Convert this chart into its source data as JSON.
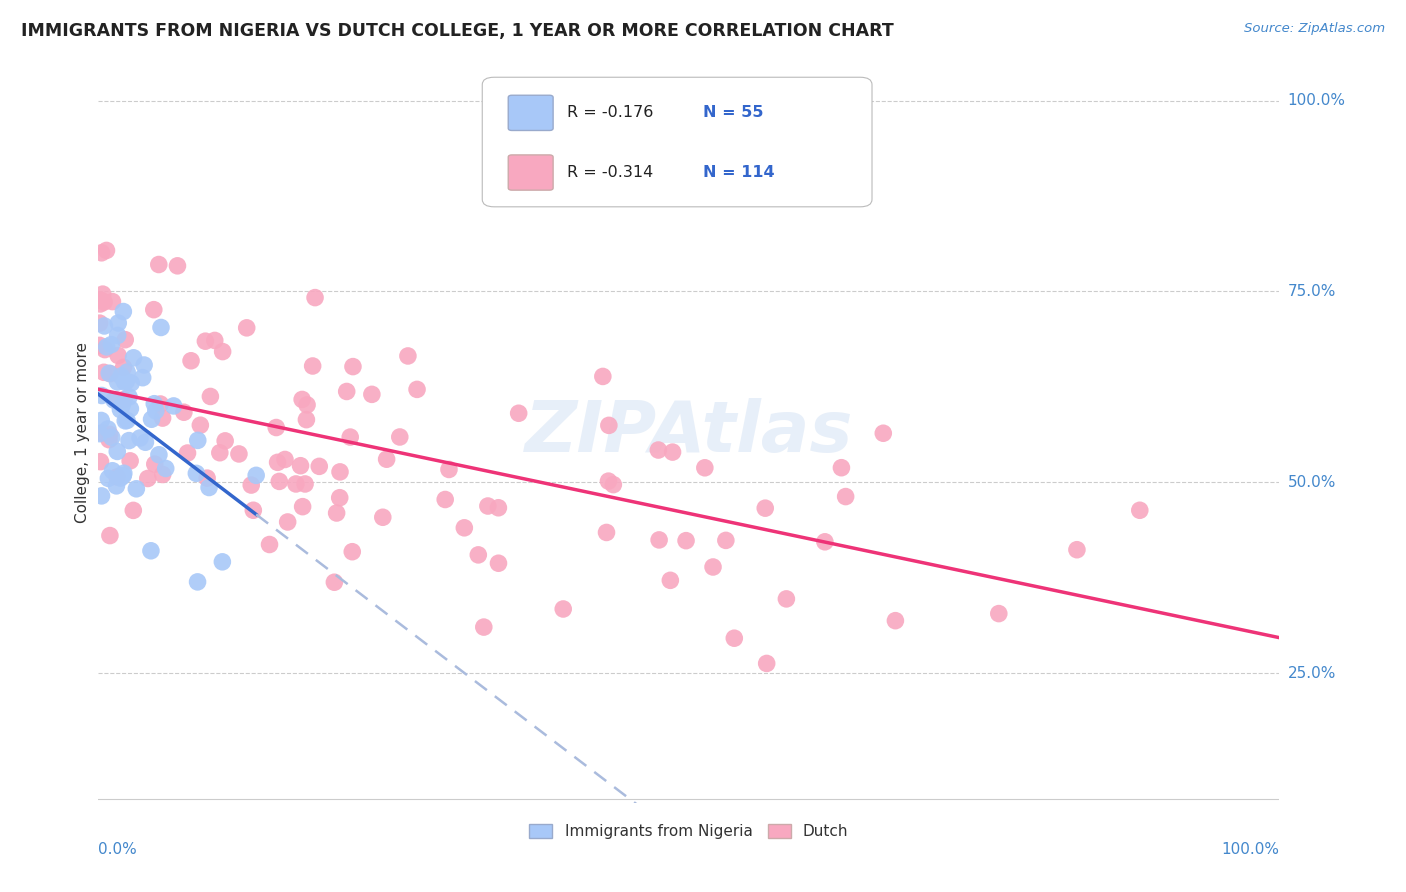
{
  "title": "IMMIGRANTS FROM NIGERIA VS DUTCH COLLEGE, 1 YEAR OR MORE CORRELATION CHART",
  "source": "Source: ZipAtlas.com",
  "ylabel": "College, 1 year or more",
  "xlim": [
    0.0,
    1.0
  ],
  "ylim": [
    0.08,
    1.05
  ],
  "yticks": [
    0.25,
    0.5,
    0.75,
    1.0
  ],
  "ytick_labels": [
    "25.0%",
    "50.0%",
    "75.0%",
    "100.0%"
  ],
  "legend_r1": "R = -0.176",
  "legend_n1": "N = 55",
  "legend_r2": "R = -0.314",
  "legend_n2": "N = 114",
  "series1_color": "#a8c8f8",
  "series2_color": "#f8a8c0",
  "series1_line_color": "#3366cc",
  "series2_line_color": "#ee3377",
  "series1_line_dashed_color": "#aabbdd",
  "watermark": "ZIPAtlas",
  "background_color": "#ffffff",
  "grid_color": "#cccccc",
  "title_color": "#222222",
  "label_color": "#4488cc",
  "legend_r_color": "#000000",
  "legend_n_color": "#3366cc"
}
